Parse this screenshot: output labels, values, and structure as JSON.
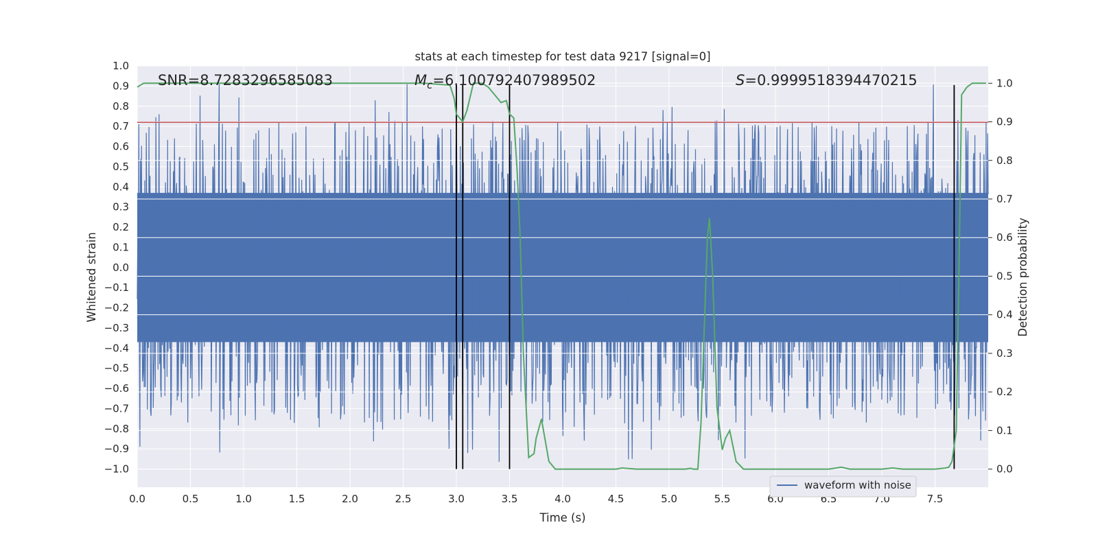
{
  "chart_data": {
    "type": "line",
    "title": "stats at each timestep for test data 9217 [signal=0]",
    "xlabel": "Time (s)",
    "ylabel": "Whitened strain",
    "y2label": "Detection probability",
    "xlim": [
      0,
      8.0
    ],
    "ylim": [
      -1.09,
      1.0
    ],
    "y2lim": [
      -0.047,
      1.045
    ],
    "xticks": [
      "0.0",
      "0.5",
      "1.0",
      "1.5",
      "2.0",
      "2.5",
      "3.0",
      "3.5",
      "4.0",
      "4.5",
      "5.0",
      "5.5",
      "6.0",
      "6.5",
      "7.0",
      "7.5"
    ],
    "yticks": [
      "1.0",
      "0.9",
      "0.8",
      "0.7",
      "0.6",
      "0.5",
      "0.4",
      "0.3",
      "0.2",
      "0.1",
      "0.0",
      "−0.1",
      "−0.2",
      "−0.3",
      "−0.4",
      "−0.5",
      "−0.6",
      "−0.7",
      "−0.8",
      "−0.9",
      "−1.0"
    ],
    "y2ticks": [
      "1.0",
      "0.9",
      "0.8",
      "0.7",
      "0.6",
      "0.5",
      "0.4",
      "0.3",
      "0.2",
      "0.1",
      "0.0"
    ],
    "grid": true,
    "legend": {
      "placement": "lower-right",
      "entries": [
        "waveform with noise"
      ]
    },
    "annotations": {
      "snr": "SNR=8.7283296585083",
      "mc_symbol": "M",
      "mc_sub": "c",
      "mc_value": "=6.100792407989502",
      "s_symbol": "S",
      "s_value": "=0.9999518394470215"
    },
    "series": [
      {
        "name": "waveform with noise",
        "axis": "left",
        "color": "#4c72b0",
        "noise": {
          "core_amplitude": 0.37,
          "peak_max": 0.92,
          "trough_min": -0.99,
          "points": 1600
        }
      },
      {
        "axis": "right",
        "color": "#55a868",
        "x": [
          0.0,
          0.06,
          0.3,
          0.6,
          0.9,
          1.2,
          1.5,
          1.8,
          2.1,
          2.4,
          2.7,
          2.94,
          2.98,
          3.0,
          3.06,
          3.1,
          3.16,
          3.24,
          3.3,
          3.36,
          3.42,
          3.47,
          3.5,
          3.54,
          3.57,
          3.6,
          3.63,
          3.68,
          3.73,
          3.75,
          3.8,
          3.87,
          3.93,
          4.0,
          4.12,
          4.2,
          4.3,
          4.4,
          4.5,
          4.56,
          4.6,
          4.7,
          4.8,
          4.9,
          5.0,
          5.1,
          5.15,
          5.2,
          5.23,
          5.27,
          5.3,
          5.36,
          5.38,
          5.41,
          5.45,
          5.5,
          5.53,
          5.57,
          5.63,
          5.7,
          5.76,
          5.8,
          5.9,
          6.0,
          6.2,
          6.4,
          6.5,
          6.62,
          6.7,
          6.8,
          6.9,
          7.0,
          7.1,
          7.2,
          7.3,
          7.4,
          7.5,
          7.6,
          7.63,
          7.66,
          7.7,
          7.73,
          7.75,
          7.8,
          7.85,
          7.9,
          7.98
        ],
        "values": [
          0.99,
          1.0,
          1.0,
          1.0,
          1.0,
          1.0,
          1.0,
          1.0,
          1.0,
          1.0,
          1.0,
          0.995,
          0.96,
          0.92,
          0.9,
          0.93,
          1.0,
          1.0,
          0.99,
          0.97,
          0.95,
          0.955,
          0.92,
          0.91,
          0.78,
          0.6,
          0.3,
          0.03,
          0.04,
          0.08,
          0.13,
          0.02,
          0.0,
          0.0,
          0.0,
          0.0,
          0.0,
          0.0,
          0.0,
          0.003,
          0.002,
          0.0,
          0.0,
          0.0,
          0.0,
          0.0,
          0.0,
          0.002,
          0.0,
          0.0,
          0.12,
          0.6,
          0.65,
          0.5,
          0.16,
          0.05,
          0.08,
          0.1,
          0.02,
          0.0,
          0.0,
          0.0,
          0.0,
          0.0,
          0.0,
          0.0,
          0.0,
          0.005,
          0.0,
          0.0,
          0.0,
          0.0,
          0.003,
          0.0,
          0.0,
          0.0,
          0.0,
          0.003,
          0.005,
          0.02,
          0.1,
          0.6,
          0.97,
          0.99,
          1.0,
          1.0,
          1.0
        ]
      }
    ],
    "threshold": {
      "axis": "left",
      "value": 0.72,
      "color": "#c44e52"
    },
    "vlines": {
      "x": [
        3.0,
        3.06,
        3.5,
        7.68
      ],
      "ymax": 0.905,
      "color": "#000000"
    }
  }
}
